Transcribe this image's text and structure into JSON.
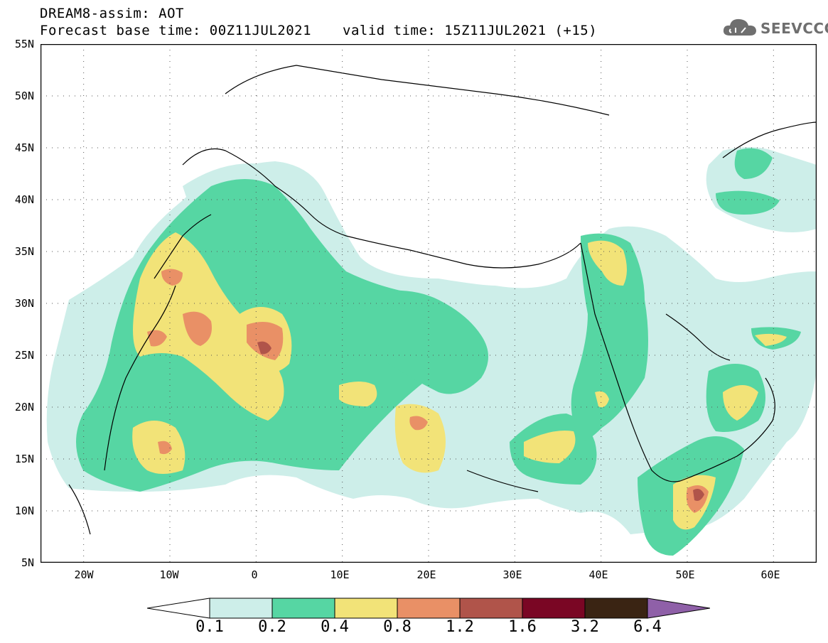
{
  "header": {
    "title_line1": "DREAM8-assim: AOT",
    "title_line2": "Forecast base time: 00Z11JUL2021",
    "valid_time": "valid time: 15Z11JUL2021 (+15)"
  },
  "logo": {
    "text": "SEEVCCC",
    "icon": "cloud-icon"
  },
  "map": {
    "region": "North Africa, Europe and Middle East",
    "lat_labels": [
      "55N",
      "50N",
      "45N",
      "40N",
      "35N",
      "30N",
      "25N",
      "20N",
      "15N",
      "10N",
      "5N"
    ],
    "lon_labels": [
      "20W",
      "10W",
      "0",
      "10E",
      "20E",
      "30E",
      "40E",
      "50E",
      "60E"
    ],
    "grid": "dotted",
    "extent": {
      "lon_min": -25,
      "lon_max": 65,
      "lat_min": 5,
      "lat_max": 55
    }
  },
  "colorbar": {
    "labels": [
      "0.1",
      "0.2",
      "0.4",
      "0.8",
      "1.2",
      "1.6",
      "3.2",
      "6.4"
    ],
    "colors": [
      "#cdeee9",
      "#56d6a3",
      "#f2e378",
      "#e99066",
      "#b0544a",
      "#7a0624",
      "#3a2413",
      "#8f60a8"
    ],
    "left_arrow_color": "#ffffff",
    "right_arrow_color": "#8f60a8"
  }
}
